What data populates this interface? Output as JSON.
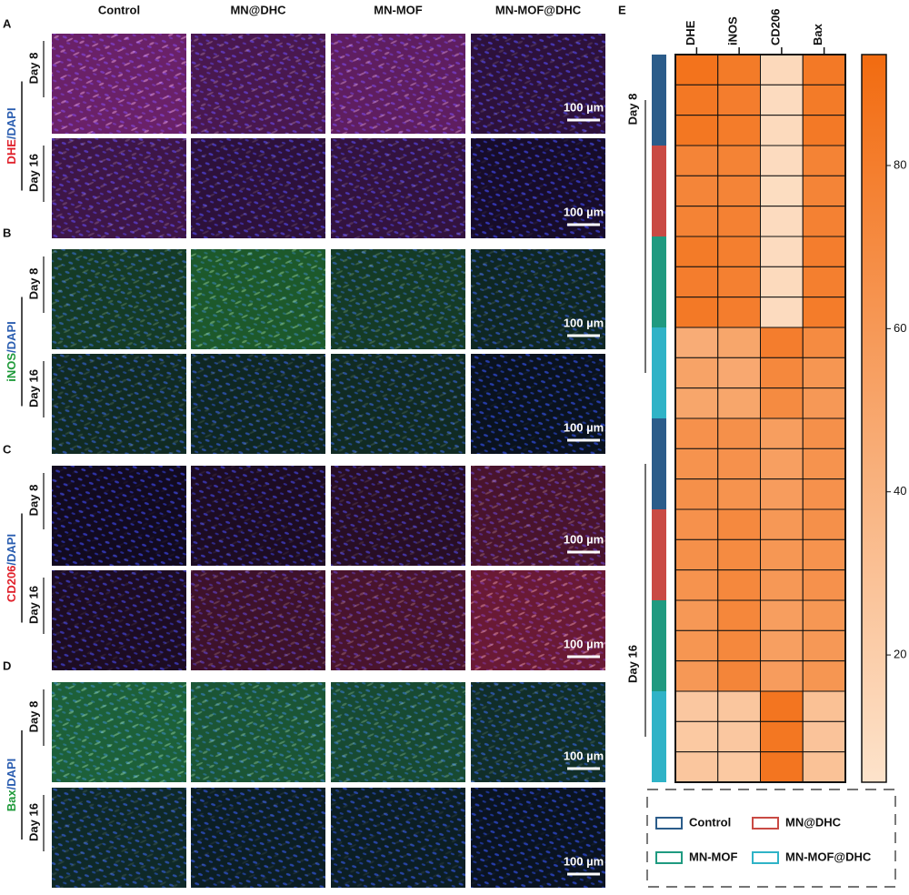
{
  "panels": [
    {
      "letter": "A",
      "stain": [
        {
          "text": "DHE",
          "color": "#e0202a"
        },
        {
          "text": "/DAPI",
          "color": "#2a5db0"
        }
      ],
      "signal_color": "#e040c0"
    },
    {
      "letter": "B",
      "stain": [
        {
          "text": "iNOS",
          "color": "#1f9a3a"
        },
        {
          "text": "/DAPI",
          "color": "#2a5db0"
        }
      ],
      "signal_color": "#40d040"
    },
    {
      "letter": "C",
      "stain": [
        {
          "text": "CD206",
          "color": "#e0202a"
        },
        {
          "text": "/DAPI",
          "color": "#2a5db0"
        }
      ],
      "signal_color": "#e03050"
    },
    {
      "letter": "D",
      "stain": [
        {
          "text": "Bax",
          "color": "#1f9a3a"
        },
        {
          "text": "/DAPI",
          "color": "#2a5db0"
        }
      ],
      "signal_color": "#40e060"
    }
  ],
  "columns": [
    "Control",
    "MN@DHC",
    "MN-MOF",
    "MN-MOF@DHC"
  ],
  "days": [
    "Day 8",
    "Day 16"
  ],
  "scale_bar": "100 µm",
  "heatmap": {
    "letter": "E",
    "columns": [
      "DHE",
      "iNOS",
      "CD206",
      "Bax"
    ],
    "row_days": [
      "Day 8",
      "Day 16"
    ],
    "row_groups": [
      {
        "name": "Control",
        "color": "#2b5c8a"
      },
      {
        "name": "MN@DHC",
        "color": "#c94a44"
      },
      {
        "name": "MN-MOF",
        "color": "#1f9a80"
      },
      {
        "name": "MN-MOF@DHC",
        "color": "#2fb3c7"
      }
    ],
    "values": [
      [
        88,
        82,
        12,
        83
      ],
      [
        84,
        80,
        10,
        82
      ],
      [
        85,
        81,
        11,
        83
      ],
      [
        75,
        76,
        10,
        76
      ],
      [
        74,
        75,
        9,
        75
      ],
      [
        76,
        77,
        10,
        77
      ],
      [
        82,
        79,
        10,
        80
      ],
      [
        80,
        78,
        11,
        79
      ],
      [
        83,
        80,
        10,
        81
      ],
      [
        45,
        50,
        80,
        70
      ],
      [
        52,
        48,
        72,
        62
      ],
      [
        50,
        50,
        70,
        60
      ],
      [
        65,
        66,
        56,
        66
      ],
      [
        64,
        65,
        55,
        64
      ],
      [
        66,
        64,
        57,
        65
      ],
      [
        65,
        71,
        60,
        66
      ],
      [
        66,
        70,
        61,
        64
      ],
      [
        64,
        72,
        60,
        65
      ],
      [
        60,
        73,
        56,
        61
      ],
      [
        62,
        72,
        55,
        60
      ],
      [
        60,
        74,
        57,
        62
      ],
      [
        25,
        26,
        86,
        30
      ],
      [
        24,
        25,
        85,
        28
      ],
      [
        26,
        24,
        86,
        29
      ]
    ],
    "clim": [
      4.4,
      93.6
    ],
    "colorbar_ticks": [
      20,
      40,
      60,
      80
    ],
    "colors": [
      "#fde3cb",
      "#f26b10"
    ]
  }
}
